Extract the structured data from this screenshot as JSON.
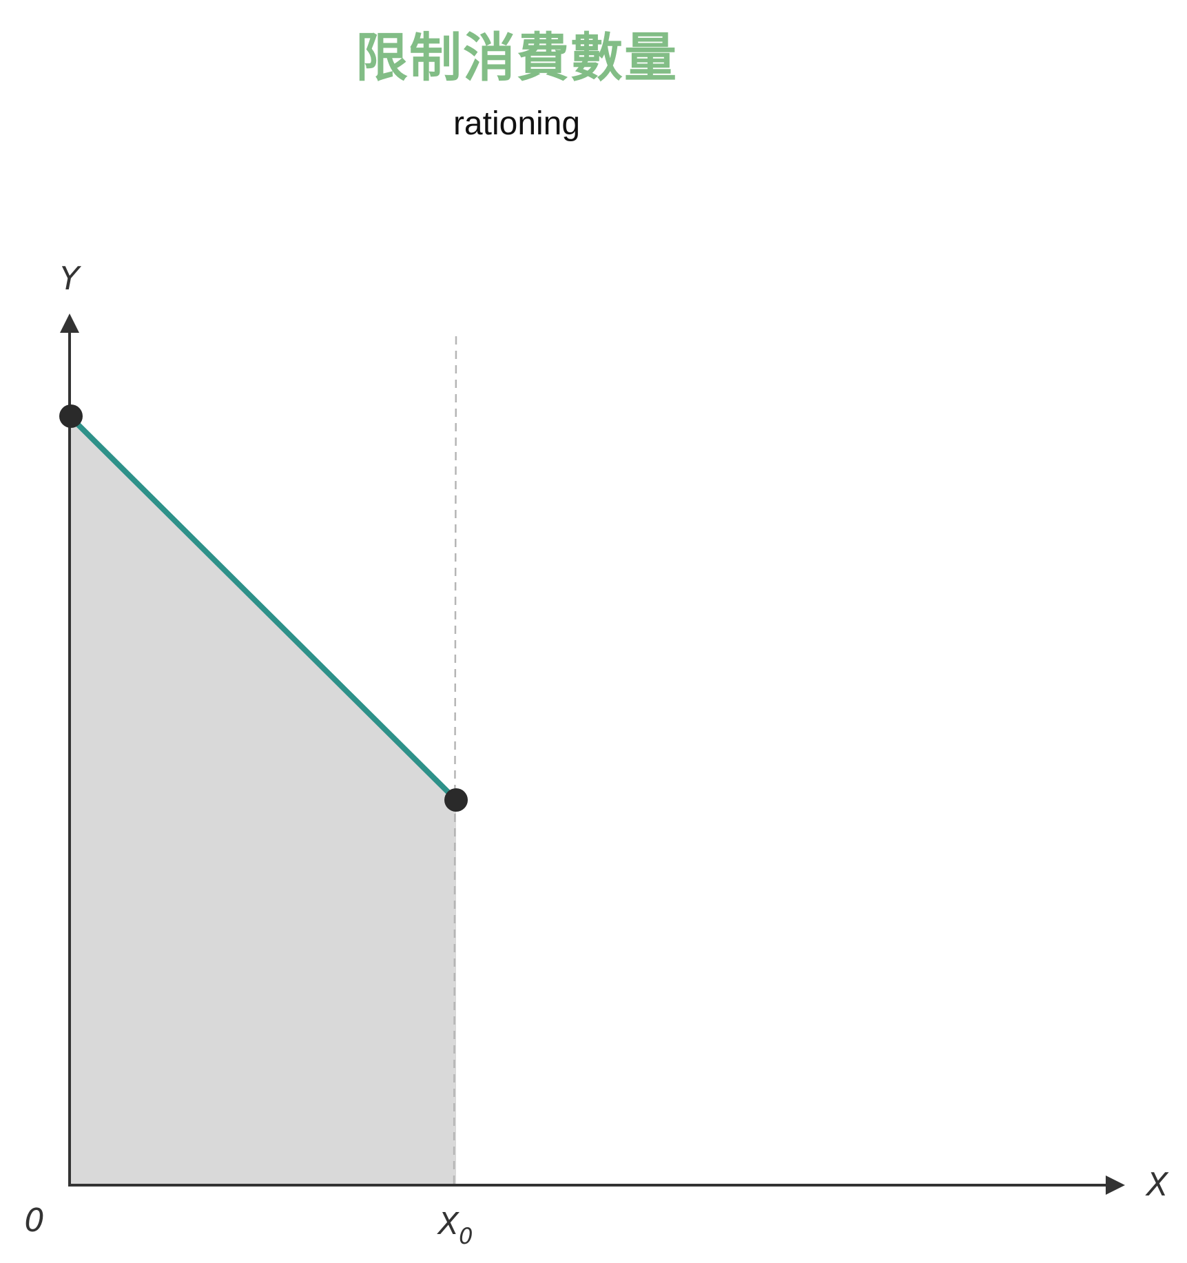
{
  "title": "限制消費數量",
  "subtitle": "rationing",
  "colors": {
    "title": "#82bd86",
    "axis": "#333333",
    "budget_line": "#2e9189",
    "feasible_fill": "#d9d9d9",
    "guide_line": "#b5b5b5",
    "points": "#2a2a2a"
  },
  "axes": {
    "x_label": "X",
    "y_label": "Y",
    "origin_label": "0",
    "x_marker_main": "X",
    "x_marker_sub": "0"
  }
}
